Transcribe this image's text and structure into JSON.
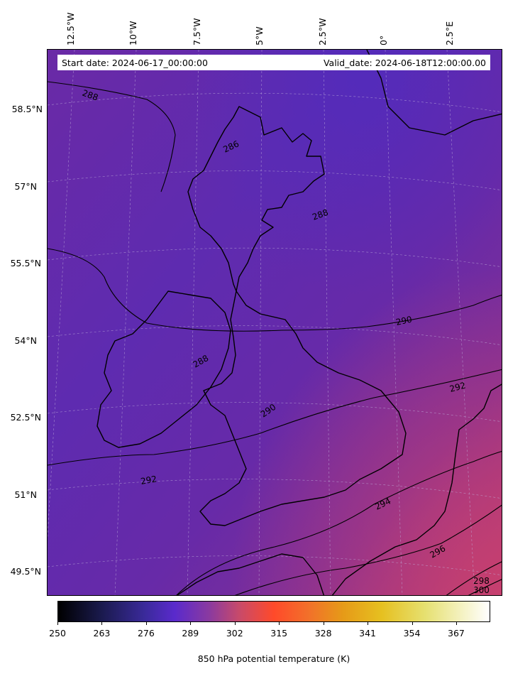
{
  "header": {
    "start_date": "Start date: 2024-06-17_00:00:00",
    "valid_date": "Valid_date: 2024-06-18T12:00:00.00"
  },
  "map": {
    "variable": "850 hPa potential temperature (K)",
    "region": "British Isles",
    "longitude_labels": [
      "12.5°W",
      "10°W",
      "7.5°W",
      "5°W",
      "2.5°W",
      "0°",
      "2.5°E"
    ],
    "latitude_labels": [
      "58.5°N",
      "57°N",
      "55.5°N",
      "54°N",
      "52.5°N",
      "51°N",
      "49.5°N"
    ],
    "contour_labels": [
      "288",
      "286",
      "288",
      "290",
      "292",
      "288",
      "292",
      "290",
      "294",
      "296",
      "298",
      "300"
    ],
    "colors": {
      "field_low": "#5b2bb0",
      "field_mid": "#6a2aa6",
      "field_high": "#b23a78",
      "coastline": "#000000",
      "gridline": "#b8a8d8"
    }
  },
  "colorbar": {
    "colormap": "CMRmap",
    "min": 250,
    "max": 377,
    "ticks": [
      "250",
      "263",
      "276",
      "289",
      "302",
      "315",
      "328",
      "341",
      "354",
      "367"
    ],
    "label": "850 hPa potential temperature (K)"
  }
}
